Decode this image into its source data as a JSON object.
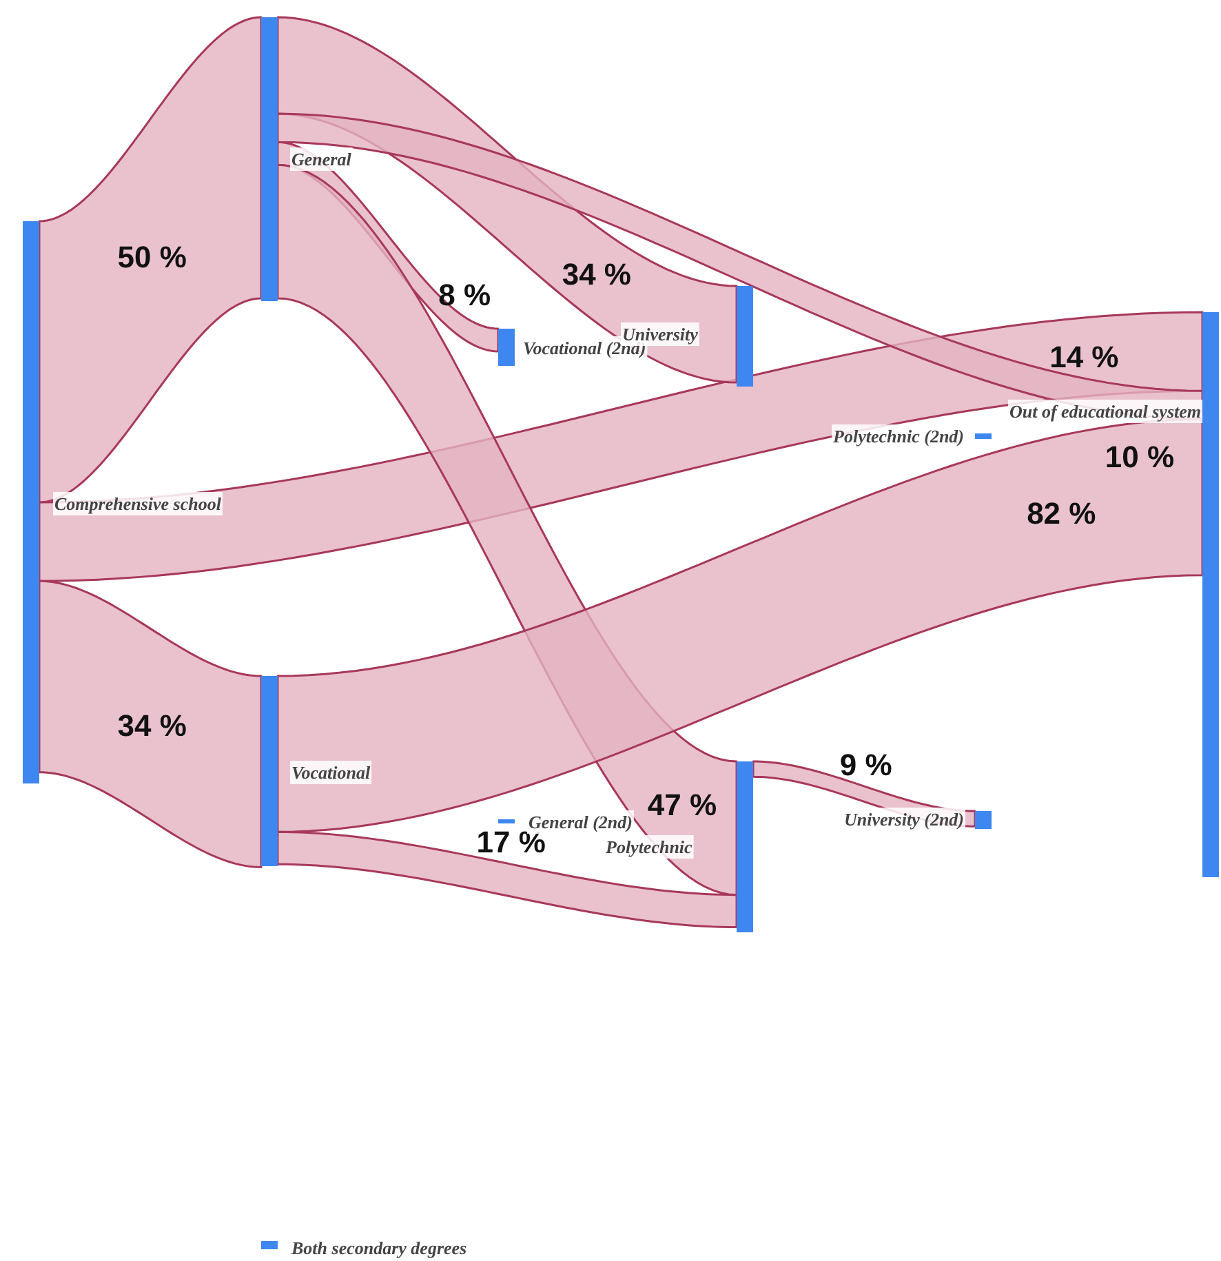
{
  "chart_data": {
    "type": "other",
    "categories": [
      "Comprehensive school",
      "General",
      "Vocational",
      "Polytechnic",
      "Both secondary degrees",
      "Vocational (2nd)",
      "General (2nd)",
      "University",
      "Polytechnic (2nd)",
      "University (2nd)",
      "Out of educational system"
    ],
    "series": [
      {
        "color": "#e3b3c2",
        "values": [
          null,
          50,
          34,
          null,
          null,
          null,
          null,
          null,
          null,
          null,
          14
        ],
        "value_labels": [
          null,
          "50 %",
          "34 %",
          null,
          null,
          null,
          null,
          null,
          null,
          null,
          "14 %"
        ]
      },
      {
        "color": "#e3b3c2",
        "values": [
          null,
          null,
          null,
          47,
          null,
          8,
          null,
          34,
          null,
          null,
          10
        ],
        "value_labels": [
          null,
          null,
          null,
          "47 %",
          null,
          "8 %",
          null,
          "34 %",
          null,
          null,
          "10 %"
        ]
      },
      {
        "color": "#e3b3c2",
        "values": [
          null,
          null,
          null,
          17,
          null,
          null,
          null,
          null,
          null,
          null,
          82
        ],
        "value_labels": [
          null,
          null,
          null,
          "17 %",
          null,
          null,
          null,
          null,
          null,
          null,
          "82 %"
        ]
      },
      {
        "color": "#e3b3c2",
        "values": [
          null,
          null,
          null,
          null,
          null,
          null,
          null,
          null,
          null,
          9,
          null
        ],
        "value_labels": [
          null,
          null,
          null,
          null,
          null,
          null,
          null,
          null,
          null,
          "9 %",
          null
        ]
      }
    ]
  }
}
